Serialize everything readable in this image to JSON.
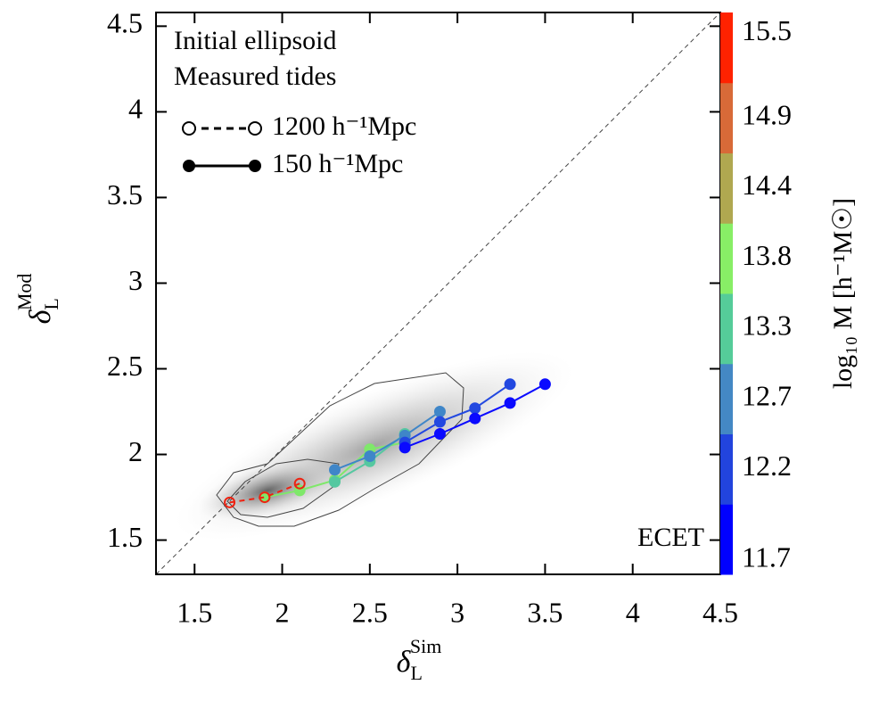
{
  "chart_data": {
    "type": "line",
    "xlabel": {
      "symbol": "δ",
      "sub": "L",
      "sup": "Sim"
    },
    "ylabel": {
      "symbol": "δ",
      "sub": "L",
      "sup": "Mod"
    },
    "annotations": [
      "Initial ellipsoid",
      "Measured tides",
      "ECET"
    ],
    "legend": [
      {
        "label": "1200 h⁻¹Mpc",
        "style": "open-dashed"
      },
      {
        "label": "150 h⁻¹Mpc",
        "style": "filled-solid"
      }
    ],
    "xlim": [
      1.28,
      4.5
    ],
    "ylim": [
      1.3,
      4.58
    ],
    "xticks": [
      1.5,
      2.0,
      2.5,
      3.0,
      3.5,
      4.0,
      4.5
    ],
    "yticks": [
      1.5,
      2.0,
      2.5,
      3.0,
      3.5,
      4.0,
      4.5
    ],
    "series": [
      {
        "color": "#7fe86a",
        "style": "filled-solid",
        "x": [
          1.9,
          2.1,
          2.3,
          2.5,
          2.7
        ],
        "values": [
          1.75,
          1.79,
          1.85,
          2.03,
          2.07
        ]
      },
      {
        "color": "#55c8a0",
        "style": "filled-solid",
        "x": [
          2.3,
          2.5,
          2.7
        ],
        "values": [
          1.84,
          1.96,
          2.12
        ]
      },
      {
        "color": "#3f86c8",
        "style": "filled-solid",
        "x": [
          2.3,
          2.5,
          2.7,
          2.9
        ],
        "values": [
          1.91,
          1.99,
          2.11,
          2.25
        ]
      },
      {
        "color": "#2248e0",
        "style": "filled-solid",
        "x": [
          2.7,
          2.9,
          3.1,
          3.3
        ],
        "values": [
          2.07,
          2.19,
          2.27,
          2.41
        ]
      },
      {
        "color": "#0a0aff",
        "style": "filled-solid",
        "x": [
          2.7,
          2.9,
          3.1,
          3.3,
          3.5
        ],
        "values": [
          2.04,
          2.12,
          2.21,
          2.3,
          2.41
        ]
      },
      {
        "color": "#ee2211",
        "style": "open-dashed",
        "x": [
          1.7,
          1.9,
          2.1
        ],
        "values": [
          1.72,
          1.75,
          1.83
        ]
      }
    ],
    "colorbar": {
      "label": "log₁₀ M [h⁻¹M☉]",
      "ticks": [
        11.7,
        12.2,
        12.7,
        13.3,
        13.8,
        14.4,
        14.9,
        15.5
      ],
      "colors": [
        "#0000ff",
        "#2244dd",
        "#4488c4",
        "#55cc99",
        "#88ee66",
        "#b0a850",
        "#d86a38",
        "#ff2200"
      ]
    }
  }
}
